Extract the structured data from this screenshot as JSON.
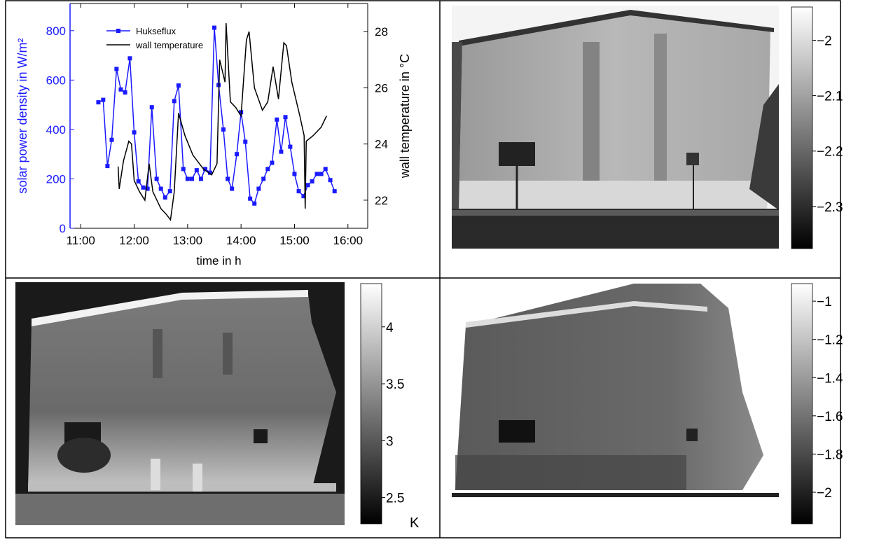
{
  "chart_data": [
    {
      "type": "line",
      "xlabel": "time in h",
      "ylabel": "solar power density in W/m²",
      "y2label": "wall temperature in °C",
      "xlim": [
        10.8,
        16.37
      ],
      "xticks": [
        {
          "value": 11,
          "label": "11:00"
        },
        {
          "value": 12,
          "label": "12:00"
        },
        {
          "value": 13,
          "label": "13:00"
        },
        {
          "value": 14,
          "label": "14:00"
        },
        {
          "value": 15,
          "label": "15:00"
        },
        {
          "value": 16,
          "label": "16:00"
        }
      ],
      "ylim": [
        0,
        910
      ],
      "yticks": [
        0,
        200,
        400,
        600,
        800
      ],
      "y2lim": [
        21,
        29
      ],
      "y2ticks": [
        22,
        24,
        26,
        28
      ],
      "legend": "upper left",
      "series": [
        {
          "name": "Hukseflux",
          "color": "#1a1aff",
          "marker": "square",
          "x": [
            11.33,
            11.42,
            11.5,
            11.58,
            11.67,
            11.75,
            11.83,
            11.92,
            12,
            12.08,
            12.17,
            12.25,
            12.33,
            12.42,
            12.5,
            12.58,
            12.67,
            12.75,
            12.83,
            12.92,
            13,
            13.08,
            13.17,
            13.25,
            13.33,
            13.42,
            13.5,
            13.58,
            13.67,
            13.75,
            13.83,
            13.92,
            14,
            14.08,
            14.17,
            14.25,
            14.33,
            14.42,
            14.5,
            14.58,
            14.67,
            14.75,
            14.83,
            14.92,
            15,
            15.08,
            15.17,
            15.25,
            15.33,
            15.42,
            15.5,
            15.58,
            15.67,
            15.75
          ],
          "values": [
            510,
            520,
            252,
            358,
            645,
            562,
            550,
            688,
            388,
            190,
            165,
            160,
            490,
            200,
            160,
            125,
            150,
            515,
            578,
            240,
            200,
            200,
            235,
            200,
            240,
            225,
            812,
            580,
            400,
            200,
            160,
            300,
            470,
            350,
            120,
            100,
            160,
            200,
            240,
            265,
            440,
            310,
            450,
            330,
            220,
            150,
            130,
            175,
            190,
            220,
            220,
            240,
            195,
            150
          ]
        },
        {
          "name": "wall temperature",
          "color": "#000000",
          "axis": "y2",
          "x": [
            11.7,
            11.72,
            11.8,
            11.9,
            11.95,
            12.0,
            12.1,
            12.2,
            12.28,
            12.35,
            12.5,
            12.6,
            12.68,
            12.75,
            12.83,
            12.95,
            13.1,
            13.3,
            13.45,
            13.55,
            13.6,
            13.7,
            13.72,
            13.8,
            13.9,
            14.0,
            14.1,
            14.15,
            14.25,
            14.4,
            14.5,
            14.6,
            14.7,
            14.8,
            14.85,
            14.95,
            15.1,
            15.18,
            15.2,
            15.22,
            15.35,
            15.5,
            15.6
          ],
          "values": [
            23.2,
            22.4,
            23.4,
            24.1,
            24.0,
            22.7,
            22.3,
            22.0,
            23.3,
            22.3,
            21.7,
            21.5,
            21.3,
            22.3,
            25.1,
            24.3,
            23.6,
            23.1,
            22.9,
            23.3,
            27.0,
            26.2,
            28.3,
            25.5,
            25.3,
            25.0,
            27.7,
            28.0,
            26.0,
            25.2,
            25.5,
            26.75,
            25.6,
            27.6,
            27.5,
            26.2,
            25.0,
            24.3,
            21.7,
            24.1,
            24.3,
            24.6,
            25.0
          ]
        }
      ]
    },
    {
      "type": "colorbar",
      "colors": [
        "#000000",
        "#ffffff"
      ],
      "ylim": [
        -2.376,
        -1.94
      ],
      "yticks": [
        {
          "value": -2,
          "label": "−2"
        },
        {
          "value": -2.1,
          "label": "−2.1"
        },
        {
          "value": -2.2,
          "label": "−2.2"
        },
        {
          "value": -2.3,
          "label": "−2.3"
        }
      ]
    },
    {
      "type": "colorbar",
      "colors": [
        "#000000",
        "#ffffff"
      ],
      "ylim": [
        2.27,
        4.38
      ],
      "yticks": [
        4,
        3.5,
        3,
        2.5
      ],
      "unit": "K"
    },
    {
      "type": "colorbar",
      "colors": [
        "#000000",
        "#ffffff"
      ],
      "ylim": [
        -2.165,
        -0.908
      ],
      "yticks": [
        {
          "value": -1,
          "label": "−1"
        },
        {
          "value": -1.2,
          "label": "−1.2"
        },
        {
          "value": -1.4,
          "label": "−1.4"
        },
        {
          "value": -1.6,
          "label": "−1.6"
        },
        {
          "value": -1.8,
          "label": "−1.8"
        },
        {
          "value": -2,
          "label": "−2"
        }
      ]
    }
  ]
}
